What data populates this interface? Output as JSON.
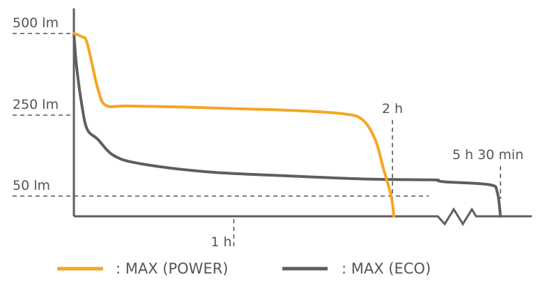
{
  "chart_data": {
    "type": "line",
    "y_ticks": [
      {
        "label": "500 lm",
        "value": 500
      },
      {
        "label": "250 lm",
        "value": 250
      },
      {
        "label": "50 lm",
        "value": 50
      }
    ],
    "x_markers": [
      {
        "label": "1 h",
        "value": 60
      },
      {
        "label": "2 h",
        "value": 120
      },
      {
        "label": "5 h 30 min",
        "value": 330
      }
    ],
    "axis_break": true,
    "series": [
      {
        "name": ": MAX (POWER)",
        "color": "#F5A623",
        "points": [
          [
            0,
            500
          ],
          [
            3,
            490
          ],
          [
            5,
            470
          ],
          [
            9,
            330
          ],
          [
            12,
            280
          ],
          [
            20,
            278
          ],
          [
            40,
            275
          ],
          [
            60,
            270
          ],
          [
            80,
            265
          ],
          [
            100,
            255
          ],
          [
            108,
            240
          ],
          [
            113,
            190
          ],
          [
            116,
            120
          ],
          [
            119,
            50
          ],
          [
            120,
            0
          ]
        ]
      },
      {
        "name": ": MAX (ECO)",
        "color": "#5E5E62",
        "points": [
          [
            0,
            500
          ],
          [
            1,
            400
          ],
          [
            3,
            280
          ],
          [
            5,
            215
          ],
          [
            9,
            190
          ],
          [
            15,
            150
          ],
          [
            25,
            130
          ],
          [
            50,
            110
          ],
          [
            80,
            100
          ],
          [
            110,
            92
          ],
          [
            140,
            90
          ],
          [
            200,
            88
          ],
          [
            280,
            85
          ],
          [
            320,
            78
          ],
          [
            327,
            60
          ],
          [
            330,
            0
          ]
        ]
      }
    ]
  }
}
